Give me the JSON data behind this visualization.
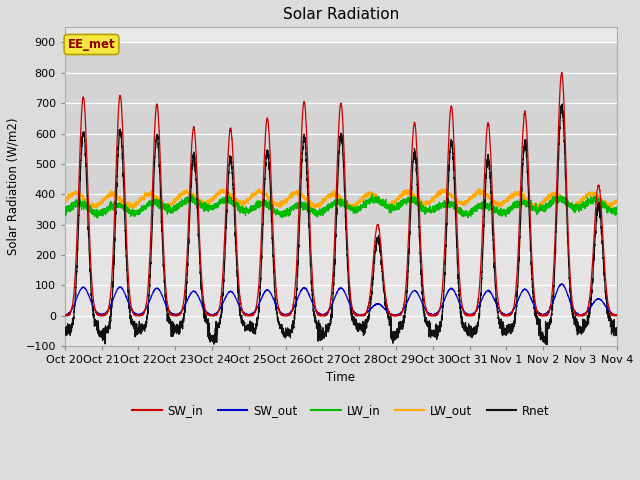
{
  "title": "Solar Radiation",
  "ylabel": "Solar Radiation (W/m2)",
  "xlabel": "Time",
  "ylim": [
    -100,
    950
  ],
  "yticks": [
    -100,
    0,
    100,
    200,
    300,
    400,
    500,
    600,
    700,
    800,
    900
  ],
  "fig_bg_color": "#e0e0e0",
  "plot_bg_color": "#e8e8e8",
  "plot_bg_upper": "#d0d0d0",
  "legend_entries": [
    "SW_in",
    "SW_out",
    "LW_in",
    "LW_out",
    "Rnet"
  ],
  "legend_colors": [
    "#cc0000",
    "#0000cc",
    "#00bb00",
    "#ffaa00",
    "#000000"
  ],
  "annotation_text": "EE_met",
  "n_days": 15,
  "SW_in_peaks": [
    720,
    725,
    695,
    620,
    615,
    650,
    705,
    700,
    300,
    635,
    690,
    635,
    670,
    800,
    430
  ],
  "tick_labels": [
    "Oct 20",
    "Oct 21",
    "Oct 22",
    "Oct 23",
    "Oct 24",
    "Oct 25",
    "Oct 26",
    "Oct 27",
    "Oct 28",
    "Oct 29",
    "Oct 30",
    "Oct 31",
    "Nov 1",
    "Nov 2",
    "Nov 3",
    "Nov 4"
  ]
}
